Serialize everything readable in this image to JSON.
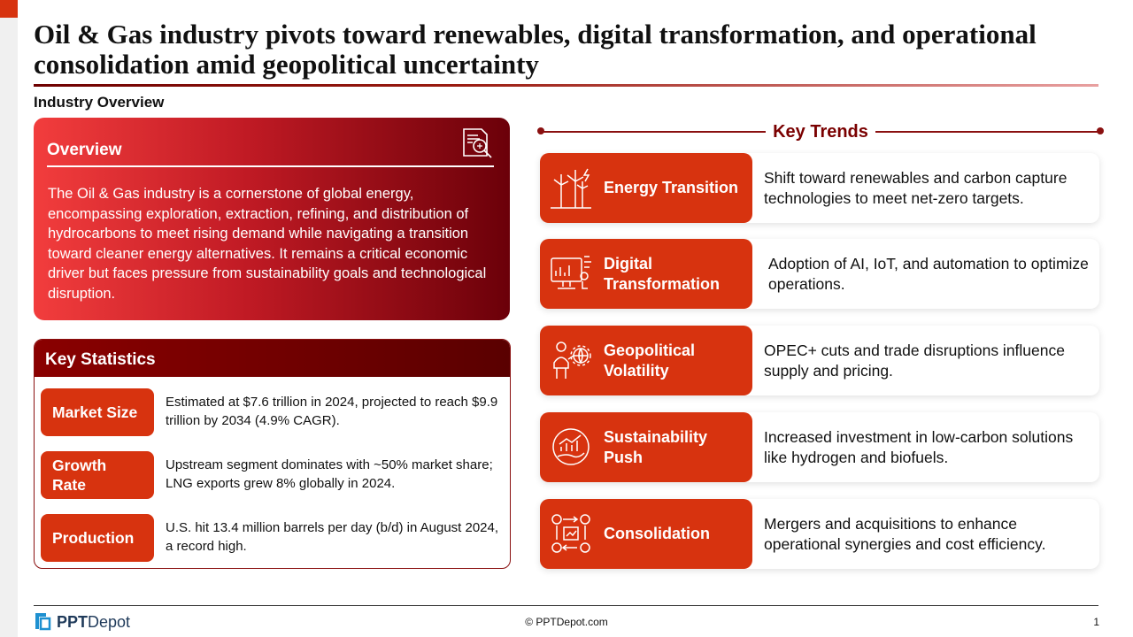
{
  "title": "Oil & Gas industry pivots toward renewables, digital transformation, and operational consolidation amid geopolitical uncertainty",
  "section_label": "Industry Overview",
  "overview": {
    "heading": "Overview",
    "icon": "document-search-icon",
    "text": "The Oil & Gas industry is a cornerstone of global energy, encompassing exploration, extraction, refining, and distribution of hydrocarbons to meet rising demand while navigating a transition toward cleaner energy alternatives. It remains a critical economic driver but faces pressure from sustainability goals and technological disruption."
  },
  "key_statistics": {
    "heading": "Key Statistics",
    "items": [
      {
        "label": "Market Size",
        "text": "Estimated at $7.6 trillion in 2024, projected to reach $9.9 trillion by 2034 (4.9% CAGR)."
      },
      {
        "label": "Growth Rate",
        "text": "Upstream segment dominates with ~50% market share; LNG exports grew 8% globally in 2024."
      },
      {
        "label": "Production",
        "text": "U.S. hit 13.4 million barrels per day (b/d) in August 2024, a record high."
      }
    ]
  },
  "key_trends": {
    "heading": "Key Trends",
    "items": [
      {
        "label": "Energy Transition",
        "icon": "wind-turbine-icon",
        "text": "Shift toward renewables and carbon capture technologies to meet net-zero targets."
      },
      {
        "label": "Digital Transformation",
        "icon": "digital-dashboard-icon",
        "text": "Adoption of AI, IoT, and automation to optimize operations."
      },
      {
        "label": "Geopolitical Volatility",
        "icon": "person-globe-icon",
        "text": "OPEC+ cuts and trade disruptions influence supply and pricing."
      },
      {
        "label": "Sustainability Push",
        "icon": "growth-hand-icon",
        "text": "Increased investment in low-carbon solutions like hydrogen and biofuels."
      },
      {
        "label": "Consolidation",
        "icon": "gears-merge-icon",
        "text": "Mergers and acquisitions to enhance operational synergies and cost efficiency."
      }
    ]
  },
  "footer": {
    "logo_bold": "PPT",
    "logo_regular": "Depot",
    "copyright": "© PPTDepot.com",
    "page_number": "1"
  },
  "colors": {
    "accent": "#d7330f",
    "dark_red": "#7a0000"
  }
}
